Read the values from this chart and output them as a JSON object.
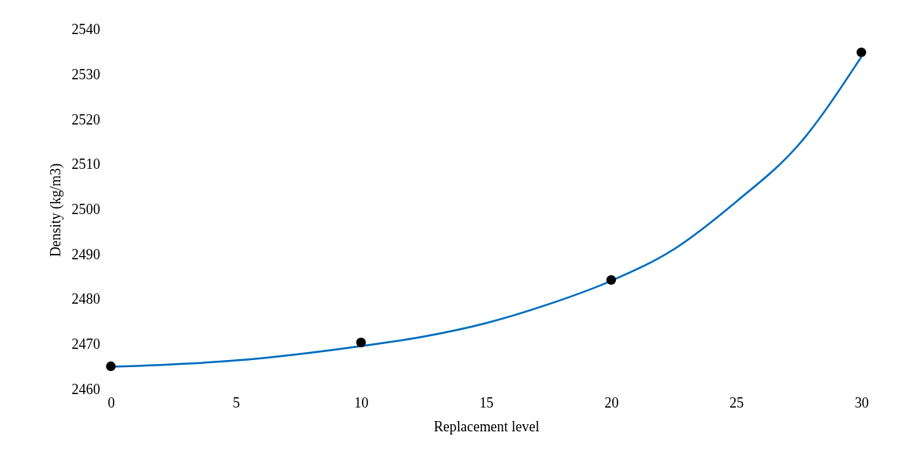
{
  "chart_data": {
    "type": "scatter",
    "xlabel": "Replacement level",
    "ylabel": "Density (kg/m3)",
    "xlim": [
      0,
      30
    ],
    "xticks": [
      0,
      5,
      10,
      15,
      20,
      25,
      30
    ],
    "ylim": [
      2460,
      2540
    ],
    "yticks": [
      2460,
      2470,
      2480,
      2490,
      2500,
      2510,
      2520,
      2530,
      2540
    ],
    "grid": false,
    "marker": "circle",
    "series": [
      {
        "type": "line",
        "color": "#0070c0",
        "line_style": "solid",
        "marker": "none",
        "x": [
          0,
          5,
          10,
          12.5,
          15,
          17.5,
          20,
          22.5,
          25,
          27.5,
          30
        ],
        "values": [
          2465.1,
          2466.5,
          2469.7,
          2471.8,
          2474.8,
          2479,
          2484.2,
          2491.2,
          2501.8,
          2514.5,
          2534
        ]
      },
      {
        "color": "#000000",
        "x": [
          0,
          10,
          20,
          30
        ],
        "values": [
          2465.2,
          2470.5,
          2484.4,
          2535
        ]
      }
    ]
  }
}
